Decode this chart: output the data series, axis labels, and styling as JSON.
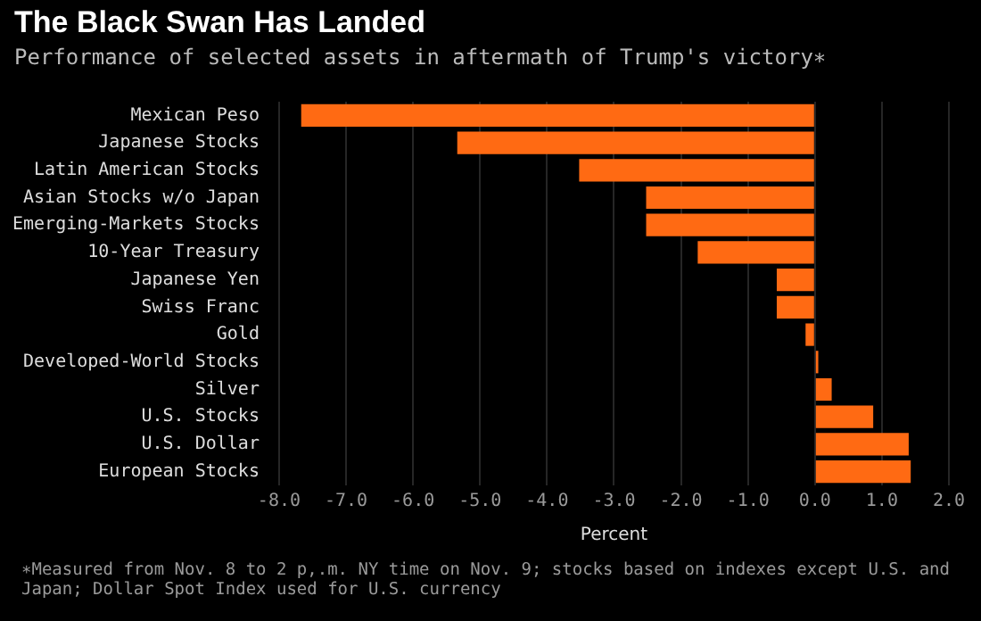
{
  "chart_data": {
    "type": "bar",
    "orientation": "horizontal",
    "title": "The Black Swan Has Landed",
    "subtitle": "Performance of selected assets in aftermath of Trump's victory∗",
    "xlabel": "Percent",
    "categories": [
      "Mexican Peso",
      "Japanese Stocks",
      "Latin American Stocks",
      "Asian Stocks w/o Japan",
      "Emerging-Markets Stocks",
      "10-Year Treasury",
      "Japanese Yen",
      "Swiss Franc",
      "Gold",
      "Developed-World Stocks",
      "Silver",
      "U.S. Stocks",
      "U.S. Dollar",
      "European Stocks"
    ],
    "values": [
      -7.67,
      -5.34,
      -3.52,
      -2.52,
      -2.52,
      -1.75,
      -0.57,
      -0.57,
      -0.14,
      0.05,
      0.25,
      0.87,
      1.4,
      1.43
    ],
    "color": "#ff6a13",
    "xlim": [
      -8,
      2
    ],
    "xticks": [
      {
        "value": -8,
        "label": "-8.0"
      },
      {
        "value": -7,
        "label": "-7.0"
      },
      {
        "value": -6,
        "label": "-6.0"
      },
      {
        "value": -5,
        "label": "-5.0"
      },
      {
        "value": -4,
        "label": "-4.0"
      },
      {
        "value": -3,
        "label": "-3.0"
      },
      {
        "value": -2,
        "label": "-2.0"
      },
      {
        "value": -1,
        "label": "-1.0"
      },
      {
        "value": 0,
        "label": "0.0"
      },
      {
        "value": 1,
        "label": "1.0"
      },
      {
        "value": 2,
        "label": "2.0"
      }
    ],
    "grid": "x",
    "annotations": [
      "∗Measured from Nov. 8 to 2 p,.m. NY time on Nov. 9; stocks based on indexes except U.S. and Japan; Dollar Spot Index used for U.S. currency"
    ]
  }
}
